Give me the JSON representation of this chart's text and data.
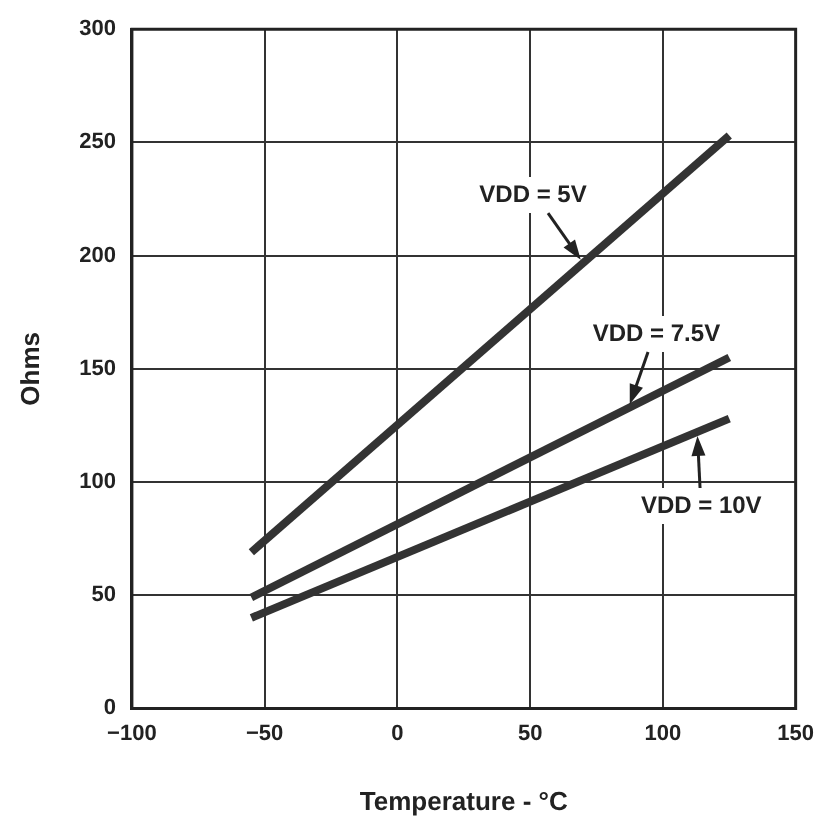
{
  "chart_data": {
    "type": "line",
    "xlabel": "Temperature - °C",
    "ylabel": "Ohms",
    "xlim": [
      -100,
      150
    ],
    "xticks": [
      {
        "value": -100,
        "label": "−100"
      },
      {
        "value": -50,
        "label": "−50"
      },
      0,
      50,
      100,
      150
    ],
    "ylim": [
      0,
      300
    ],
    "yticks": [
      0,
      50,
      100,
      150,
      200,
      250,
      300
    ],
    "x": [
      -55,
      125
    ],
    "series": [
      {
        "name": "VDD = 5V",
        "color": "#333333",
        "values": [
          69,
          253
        ]
      },
      {
        "name": "VDD = 7.5V",
        "color": "#333333",
        "values": [
          49,
          155
        ]
      },
      {
        "name": "VDD = 10V",
        "color": "#333333",
        "values": [
          40,
          128
        ]
      }
    ],
    "grid": true,
    "legend": false,
    "marker": "none",
    "line_style": "solid"
  }
}
